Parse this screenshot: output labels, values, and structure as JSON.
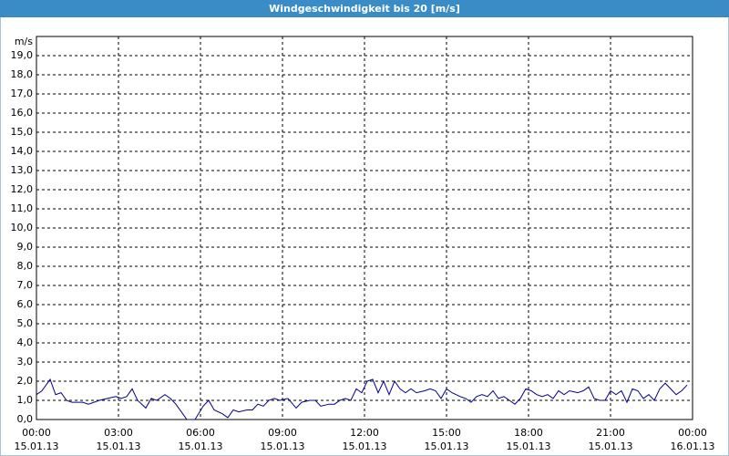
{
  "chart_data": {
    "type": "line",
    "title": "Windgeschwindigkeit bis 20 [m/s]",
    "y_label": "m/s",
    "xlim": [
      0,
      24
    ],
    "ylim": [
      0,
      20
    ],
    "grid": true,
    "grid_style": "dashed",
    "xticks": [
      {
        "value": 0,
        "label": "00:00",
        "date": "15.01.13"
      },
      {
        "value": 3,
        "label": "03:00",
        "date": "15.01.13"
      },
      {
        "value": 6,
        "label": "06:00",
        "date": "15.01.13"
      },
      {
        "value": 9,
        "label": "09:00",
        "date": "15.01.13"
      },
      {
        "value": 12,
        "label": "12:00",
        "date": "15.01.13"
      },
      {
        "value": 15,
        "label": "15:00",
        "date": "15.01.13"
      },
      {
        "value": 18,
        "label": "18:00",
        "date": "15.01.13"
      },
      {
        "value": 21,
        "label": "21:00",
        "date": "15.01.13"
      },
      {
        "value": 24,
        "label": "00:00",
        "date": "16.01.13"
      }
    ],
    "yticks": [
      {
        "value": 0,
        "label": "0,0"
      },
      {
        "value": 1,
        "label": "1,0"
      },
      {
        "value": 2,
        "label": "2,0"
      },
      {
        "value": 3,
        "label": "3,0"
      },
      {
        "value": 4,
        "label": "4,0"
      },
      {
        "value": 5,
        "label": "5,0"
      },
      {
        "value": 6,
        "label": "6,0"
      },
      {
        "value": 7,
        "label": "7,0"
      },
      {
        "value": 8,
        "label": "8,0"
      },
      {
        "value": 9,
        "label": "9,0"
      },
      {
        "value": 10,
        "label": "10,0"
      },
      {
        "value": 11,
        "label": "11,0"
      },
      {
        "value": 12,
        "label": "12,0"
      },
      {
        "value": 13,
        "label": "13,0"
      },
      {
        "value": 14,
        "label": "14,0"
      },
      {
        "value": 15,
        "label": "15,0"
      },
      {
        "value": 16,
        "label": "16,0"
      },
      {
        "value": 17,
        "label": "17,0"
      },
      {
        "value": 18,
        "label": "18,0"
      },
      {
        "value": 19,
        "label": "19,0"
      }
    ],
    "x": [
      0,
      0.2,
      0.5,
      0.7,
      0.9,
      1.1,
      1.3,
      1.7,
      1.9,
      2.1,
      2.3,
      2.6,
      2.9,
      3.1,
      3.3,
      3.5,
      3.7,
      4.0,
      4.2,
      4.4,
      4.7,
      4.9,
      5.1,
      5.3,
      5.5,
      5.8,
      6.1,
      6.3,
      6.5,
      6.8,
      7.0,
      7.2,
      7.4,
      7.7,
      7.9,
      8.1,
      8.3,
      8.5,
      8.7,
      8.9,
      9.2,
      9.5,
      9.7,
      10.0,
      10.2,
      10.4,
      10.7,
      10.9,
      11.1,
      11.3,
      11.5,
      11.7,
      11.9,
      12.1,
      12.3,
      12.5,
      12.7,
      12.9,
      13.1,
      13.3,
      13.5,
      13.7,
      13.9,
      14.2,
      14.4,
      14.6,
      14.8,
      15.0,
      15.2,
      15.5,
      15.7,
      15.9,
      16.1,
      16.3,
      16.5,
      16.7,
      16.9,
      17.1,
      17.3,
      17.5,
      17.7,
      17.9,
      18.1,
      18.3,
      18.5,
      18.7,
      18.9,
      19.1,
      19.3,
      19.5,
      19.8,
      20.0,
      20.2,
      20.4,
      20.6,
      20.8,
      21.0,
      21.2,
      21.4,
      21.6,
      21.8,
      22.0,
      22.2,
      22.4,
      22.6,
      22.8,
      23.0,
      23.2,
      23.4,
      23.6,
      23.8
    ],
    "series": [
      {
        "name": "Windgeschwindigkeit",
        "color": "#00008b",
        "values": [
          1.3,
          1.5,
          2.1,
          1.3,
          1.4,
          1.0,
          0.9,
          0.9,
          0.8,
          0.9,
          1.0,
          1.1,
          1.2,
          1.1,
          1.2,
          1.6,
          1.0,
          0.6,
          1.1,
          1.0,
          1.3,
          1.1,
          0.8,
          0.4,
          0.0,
          0.0,
          0.7,
          1.0,
          0.5,
          0.3,
          0.1,
          0.5,
          0.4,
          0.5,
          0.5,
          0.8,
          0.7,
          1.0,
          1.1,
          1.0,
          1.1,
          0.6,
          0.9,
          1.0,
          1.0,
          0.7,
          0.8,
          0.8,
          1.0,
          1.1,
          1.0,
          1.6,
          1.4,
          2.0,
          2.1,
          1.4,
          2.0,
          1.3,
          2.0,
          1.6,
          1.4,
          1.6,
          1.4,
          1.5,
          1.6,
          1.5,
          1.1,
          1.6,
          1.4,
          1.2,
          1.1,
          0.9,
          1.2,
          1.3,
          1.2,
          1.5,
          1.1,
          1.2,
          1.0,
          0.8,
          1.1,
          1.6,
          1.5,
          1.3,
          1.2,
          1.3,
          1.1,
          1.5,
          1.3,
          1.5,
          1.4,
          1.5,
          1.7,
          1.1,
          1.0,
          1.0,
          1.5,
          1.3,
          1.5,
          0.9,
          1.6,
          1.5,
          1.1,
          1.3,
          1.0,
          1.6,
          1.9,
          1.6,
          1.3,
          1.5,
          1.8
        ]
      }
    ]
  }
}
